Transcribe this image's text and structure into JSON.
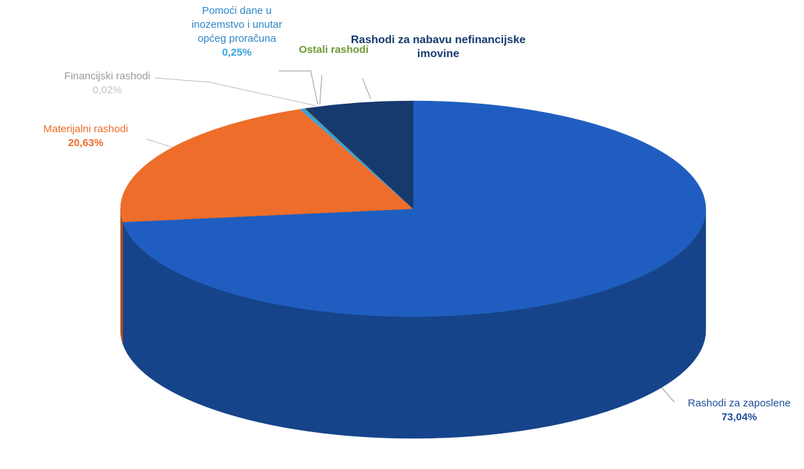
{
  "chart_data": {
    "type": "pie",
    "style": "3d",
    "title": "",
    "slices": [
      {
        "name": "Rashodi za zaposlene",
        "value": 73.04,
        "value_label": "73,04%",
        "color": "#1f5ec0"
      },
      {
        "name": "Materijalni rashodi",
        "value": 20.63,
        "value_label": "20,63%",
        "color": "#ee6d2a"
      },
      {
        "name": "Financijski rashodi",
        "value": 0.02,
        "value_label": "0,02%",
        "color": "#a8a8a8"
      },
      {
        "name": "Pomoći dane u inozemstvo i unutar općeg proračuna",
        "value": 0.25,
        "value_label": "0,25%",
        "color": "#3aa0e0"
      },
      {
        "name": "Ostali rashodi",
        "value": 0.05,
        "value_label": "",
        "color": "#6e9a3a"
      },
      {
        "name": "Rashodi za nabavu nefinancijske imovine",
        "value": 6.01,
        "value_label": "",
        "color": "#163a6e"
      }
    ]
  },
  "labels": {
    "zaposlene": {
      "name": "Rashodi za zaposlene",
      "pct": "73,04%"
    },
    "materijalni": {
      "name": "Materijalni rashodi",
      "pct": "20,63%"
    },
    "financijski": {
      "name": "Financijski rashodi",
      "pct": "0,02%"
    },
    "pomoci": {
      "line1": "Pomoći dane u",
      "line2": "inozemstvo i unutar",
      "line3": "općeg proračuna",
      "pct": "0,25%"
    },
    "ostali": {
      "name": "Ostali rashodi"
    },
    "nabava": {
      "line1": "Rashodi za nabavu nefinancijske",
      "line2": "imovine"
    }
  }
}
